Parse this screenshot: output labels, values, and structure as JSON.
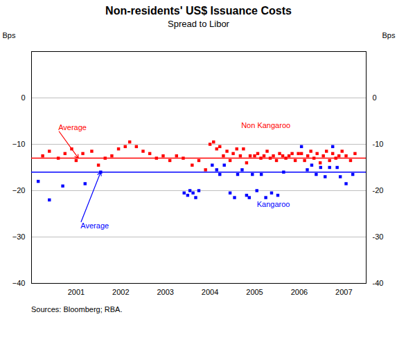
{
  "chart_data": {
    "type": "scatter",
    "title": "Non-residents' US$ Issuance Costs",
    "subtitle": "Spread to Libor",
    "source": "Sources: Bloomberg; RBA.",
    "ylabel": "Bps",
    "y2label": "Bps",
    "xlim": [
      2000.0,
      2007.5
    ],
    "xticks": [
      2001,
      2002,
      2003,
      2004,
      2005,
      2006,
      2007
    ],
    "ylim": [
      -40,
      10
    ],
    "yticks": [
      -40,
      -30,
      -20,
      -10,
      0
    ],
    "y2lim": [
      -40,
      10
    ],
    "y2ticks": [
      -40,
      -30,
      -20,
      -10,
      0
    ],
    "grid": true,
    "series": [
      {
        "name": "Non Kangaroo",
        "color": "red",
        "marker": "square",
        "label_x": 2004.7,
        "label_y": -6.5,
        "x": [
          2000.25,
          2000.4,
          2000.6,
          2000.75,
          2000.9,
          2001.0,
          2001.15,
          2001.35,
          2001.5,
          2001.65,
          2001.8,
          2001.95,
          2002.1,
          2002.2,
          2002.35,
          2002.5,
          2002.65,
          2002.8,
          2002.95,
          2003.1,
          2003.25,
          2003.4,
          2003.6,
          2003.75,
          2003.9,
          2004.0,
          2004.08,
          2004.15,
          2004.22,
          2004.3,
          2004.38,
          2004.45,
          2004.52,
          2004.6,
          2004.68,
          2004.75,
          2004.82,
          2004.9,
          2005.0,
          2005.07,
          2005.14,
          2005.21,
          2005.28,
          2005.35,
          2005.42,
          2005.49,
          2005.56,
          2005.63,
          2005.7,
          2005.77,
          2005.84,
          2005.91,
          2005.98,
          2006.05,
          2006.12,
          2006.19,
          2006.26,
          2006.33,
          2006.4,
          2006.47,
          2006.54,
          2006.61,
          2006.68,
          2006.75,
          2006.82,
          2006.89,
          2006.96,
          2007.05,
          2007.15,
          2007.25
        ],
        "values": [
          -12.5,
          -11.5,
          -13.0,
          -12.0,
          -11.0,
          -13.5,
          -12.0,
          -11.5,
          -14.5,
          -13.0,
          -12.5,
          -11.0,
          -10.5,
          -9.5,
          -10.5,
          -11.5,
          -12.0,
          -13.0,
          -12.5,
          -13.5,
          -12.5,
          -13.0,
          -14.5,
          -13.5,
          -15.5,
          -10.0,
          -9.5,
          -11.0,
          -10.5,
          -12.5,
          -11.5,
          -13.5,
          -12.0,
          -11.0,
          -12.5,
          -11.0,
          -14.0,
          -12.5,
          -12.5,
          -12.0,
          -13.0,
          -12.5,
          -11.5,
          -13.0,
          -12.5,
          -13.5,
          -12.0,
          -12.5,
          -13.0,
          -12.5,
          -12.0,
          -13.5,
          -12.0,
          -12.0,
          -13.5,
          -12.5,
          -11.5,
          -13.0,
          -12.0,
          -14.0,
          -12.5,
          -11.5,
          -13.5,
          -12.0,
          -13.0,
          -12.5,
          -11.5,
          -12.5,
          -13.5,
          -12.0
        ]
      },
      {
        "name": "Kangaroo",
        "color": "blue",
        "marker": "square",
        "label_x": 2005.05,
        "label_y": -23.5,
        "x": [
          2000.15,
          2000.4,
          2000.7,
          2001.2,
          2001.55,
          2003.42,
          2003.5,
          2003.55,
          2003.62,
          2003.68,
          2003.75,
          2004.05,
          2004.15,
          2004.22,
          2004.32,
          2004.45,
          2004.55,
          2004.62,
          2004.72,
          2004.82,
          2004.88,
          2004.95,
          2005.05,
          2005.15,
          2005.25,
          2005.38,
          2005.52,
          2005.65,
          2006.05,
          2006.18,
          2006.28,
          2006.38,
          2006.48,
          2006.58,
          2006.68,
          2006.75,
          2006.85,
          2006.92,
          2007.05,
          2007.2
        ],
        "values": [
          -18.0,
          -22.0,
          -19.0,
          -18.5,
          -16.0,
          -20.5,
          -21.0,
          -20.0,
          -20.5,
          -21.5,
          -20.0,
          -14.5,
          -15.5,
          -16.5,
          -14.5,
          -20.5,
          -21.5,
          -16.5,
          -15.5,
          -21.0,
          -21.5,
          -16.5,
          -20.0,
          -16.5,
          -21.5,
          -20.5,
          -21.0,
          -16.0,
          -10.5,
          -15.5,
          -14.5,
          -16.5,
          -15.0,
          -17.0,
          -15.0,
          -10.5,
          -15.0,
          -17.0,
          -18.5,
          -16.5
        ]
      }
    ],
    "hlines": [
      {
        "y": -13.0,
        "color": "red"
      },
      {
        "y": -16.0,
        "color": "blue"
      }
    ],
    "annotations": [
      {
        "text": "Average",
        "x": 2000.6,
        "y": -7.0,
        "arrow_x": 2001.05,
        "arrow_y": -13.0,
        "color": "red"
      },
      {
        "text": "Average",
        "x": 2001.1,
        "y": -27.0,
        "arrow_x": 2001.55,
        "arrow_y": -16.0,
        "color": "blue"
      }
    ]
  }
}
